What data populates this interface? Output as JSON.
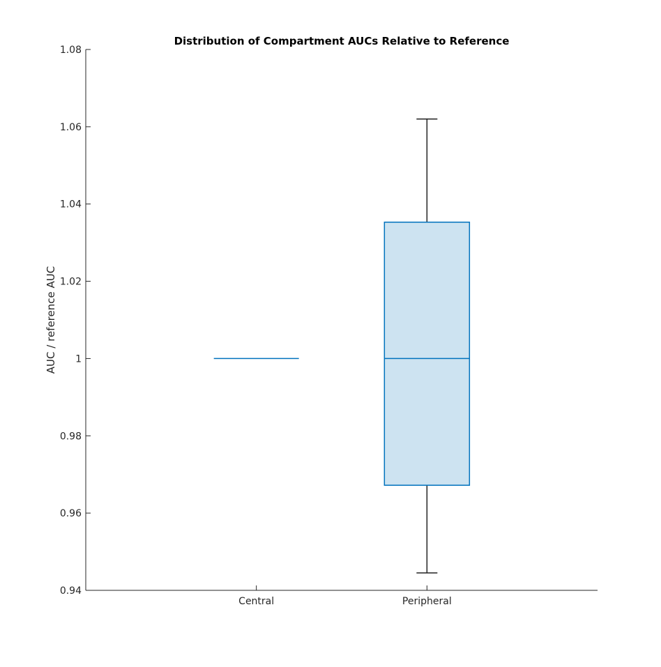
{
  "chart_data": {
    "type": "box",
    "title": "Distribution of Compartment AUCs Relative to Reference",
    "xlabel": "",
    "ylabel": "AUC / reference AUC",
    "ylim": [
      0.94,
      1.08
    ],
    "yticks": [
      0.94,
      0.96,
      0.98,
      1,
      1.02,
      1.04,
      1.06,
      1.08
    ],
    "ytick_labels": [
      "0.94",
      "0.96",
      "0.98",
      "1",
      "1.02",
      "1.04",
      "1.06",
      "1.08"
    ],
    "categories": [
      "Central",
      "Peripheral"
    ],
    "boxes": [
      {
        "category": "Central",
        "whisker_low": 1.0,
        "q1": 1.0,
        "median": 1.0,
        "q3": 1.0,
        "whisker_high": 1.0
      },
      {
        "category": "Peripheral",
        "whisker_low": 0.9445,
        "q1": 0.9672,
        "median": 1.0,
        "q3": 1.0353,
        "whisker_high": 1.062
      }
    ],
    "grid": false,
    "colors": {
      "box_edge": "#0072BD",
      "box_fill": "#cde3f1",
      "whisker": "#222222",
      "axis": "#262626"
    }
  }
}
